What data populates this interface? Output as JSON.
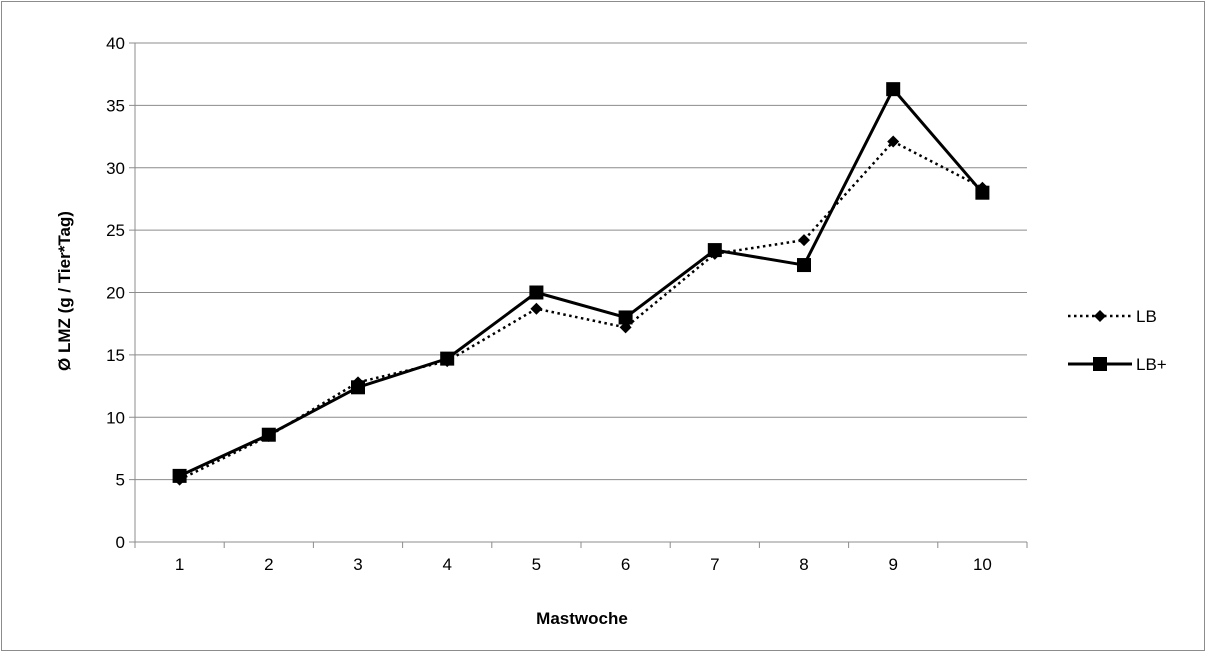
{
  "chart_data": {
    "type": "line",
    "title": "",
    "xlabel": "Mastwoche",
    "ylabel": "Ø LMZ (g / Tier*Tag)",
    "categories": [
      "1",
      "2",
      "3",
      "4",
      "5",
      "6",
      "7",
      "8",
      "9",
      "10"
    ],
    "ylim": [
      0,
      40
    ],
    "yticks": [
      "0",
      "5",
      "10",
      "15",
      "20",
      "25",
      "30",
      "35",
      "40"
    ],
    "grid": "horizontal",
    "legend_position": "right",
    "series": [
      {
        "name": "LB",
        "values": [
          5.0,
          8.5,
          12.8,
          14.5,
          18.7,
          17.2,
          23.1,
          24.2,
          32.1,
          28.4
        ],
        "line_style": "dotted",
        "marker": "diamond",
        "color": "#000000"
      },
      {
        "name": "LB+",
        "values": [
          5.3,
          8.6,
          12.4,
          14.7,
          20.0,
          18.0,
          23.4,
          22.2,
          36.3,
          28.0
        ],
        "line_style": "solid",
        "marker": "square",
        "color": "#000000"
      }
    ]
  }
}
